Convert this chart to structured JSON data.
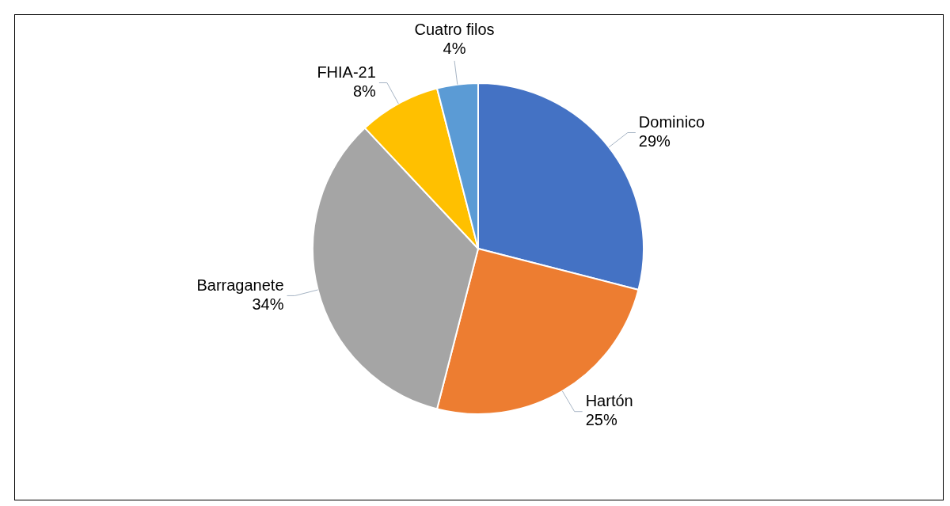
{
  "chart_data": {
    "type": "pie",
    "categories": [
      "Dominico",
      "Hartón",
      "Barraganete",
      "FHIA-21",
      "Cuatro filos"
    ],
    "values": [
      29,
      25,
      34,
      8,
      4
    ],
    "colors": [
      "#4472c4",
      "#ed7d31",
      "#a5a5a5",
      "#ffc000",
      "#5b9bd5"
    ],
    "value_labels": [
      "29%",
      "25%",
      "34%",
      "8%",
      "4%"
    ]
  }
}
